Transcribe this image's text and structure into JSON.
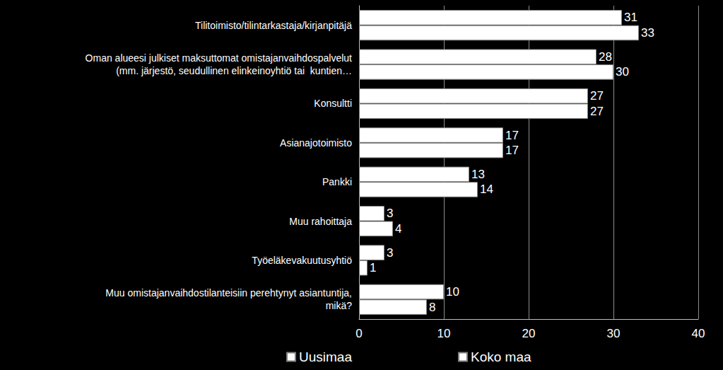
{
  "chart_data": {
    "type": "bar",
    "orientation": "horizontal",
    "categories": [
      "Tilitoimisto/tilintarkastaja/kirjanpitäjä",
      "Oman alueesi julkiset maksuttomat omistajanvaihdospalvelut\n(mm. järjestö, seudullinen elinkeinoyhtiö tai  kuntien…",
      "Konsultti",
      "Asianajotoimisto",
      "Pankki",
      "Muu rahoittaja",
      "Työeläkevakuutusyhtiö",
      "Muu omistajanvaihdostilanteisiin perehtynyt asiantuntija,\nmikä?"
    ],
    "series": [
      {
        "name": "Uusimaa",
        "color": "#ffffff",
        "values": [
          31,
          28,
          27,
          17,
          13,
          3,
          3,
          10
        ]
      },
      {
        "name": "Koko maa",
        "color": "#ffffff",
        "values": [
          33,
          30,
          27,
          17,
          14,
          4,
          1,
          8
        ]
      }
    ],
    "xlim": [
      0,
      40
    ],
    "xticks": [
      0,
      10,
      20,
      30,
      40
    ],
    "grid": true,
    "legend": "bottom",
    "data_labels": true
  }
}
